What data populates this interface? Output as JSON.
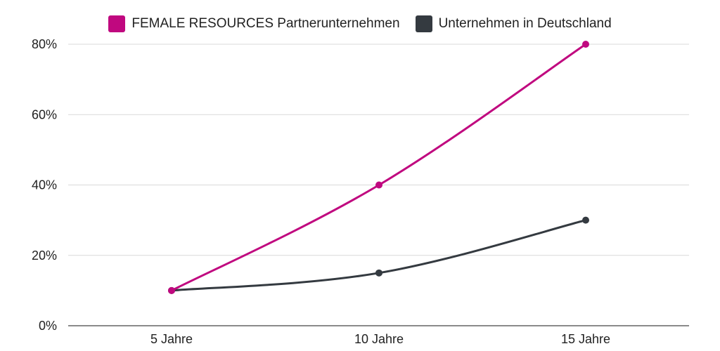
{
  "chart_data": {
    "type": "line",
    "categories": [
      "5 Jahre",
      "10 Jahre",
      "15 Jahre"
    ],
    "series": [
      {
        "name": "FEMALE RESOURCES Partnerunternehmen",
        "values": [
          10,
          40,
          80
        ],
        "color": "#c0087f"
      },
      {
        "name": "Unternehmen in Deutschland",
        "values": [
          10,
          15,
          30
        ],
        "color": "#343a40"
      }
    ],
    "ylim": [
      0,
      80
    ],
    "yticks": [
      0,
      20,
      40,
      60,
      80
    ],
    "ytick_labels": [
      "0%",
      "20%",
      "40%",
      "60%",
      "80%"
    ],
    "legend_position": "top-center",
    "grid": true
  }
}
